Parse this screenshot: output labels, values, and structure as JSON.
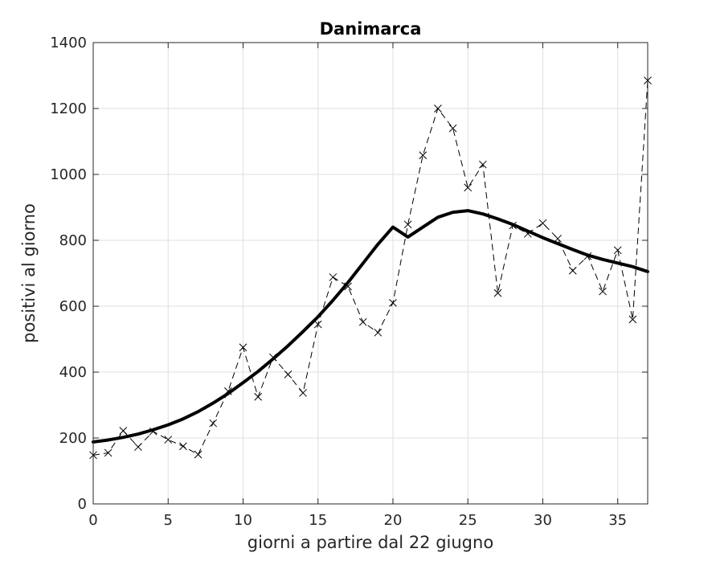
{
  "chart_data": {
    "type": "line",
    "title": "Danimarca",
    "xlabel": "giorni a partire dal 22 giugno",
    "ylabel": "positivi al giorno",
    "xlim": [
      0,
      37
    ],
    "ylim": [
      0,
      1400
    ],
    "xticks": [
      0,
      5,
      10,
      15,
      20,
      25,
      30,
      35
    ],
    "yticks": [
      0,
      200,
      400,
      600,
      800,
      1000,
      1200,
      1400
    ],
    "grid": true,
    "series": [
      {
        "style": "dashed-with-x-markers",
        "color": "#000000",
        "x": [
          0,
          1,
          2,
          3,
          4,
          5,
          6,
          7,
          8,
          9,
          10,
          11,
          12,
          13,
          14,
          15,
          16,
          17,
          18,
          19,
          20,
          21,
          22,
          23,
          24,
          25,
          26,
          27,
          28,
          29,
          30,
          31,
          32,
          33,
          34,
          35,
          36,
          37
        ],
        "values": [
          148,
          155,
          222,
          173,
          220,
          195,
          175,
          150,
          245,
          342,
          475,
          325,
          445,
          393,
          337,
          545,
          688,
          660,
          552,
          520,
          610,
          848,
          1058,
          1200,
          1140,
          960,
          1030,
          640,
          845,
          820,
          852,
          805,
          708,
          752,
          645,
          770,
          560,
          1285
        ]
      },
      {
        "style": "solid-thick",
        "color": "#000000",
        "x": [
          0,
          1,
          2,
          3,
          4,
          5,
          6,
          7,
          8,
          9,
          10,
          11,
          12,
          13,
          14,
          15,
          16,
          17,
          18,
          19,
          20,
          21,
          22,
          23,
          24,
          25,
          26,
          27,
          28,
          29,
          30,
          31,
          32,
          33,
          34,
          35,
          36,
          37
        ],
        "values": [
          188,
          194,
          202,
          212,
          225,
          240,
          258,
          280,
          306,
          335,
          368,
          402,
          440,
          480,
          523,
          568,
          618,
          672,
          730,
          788,
          840,
          810,
          840,
          870,
          885,
          890,
          880,
          865,
          848,
          828,
          808,
          790,
          772,
          755,
          742,
          731,
          720,
          705
        ]
      }
    ]
  }
}
